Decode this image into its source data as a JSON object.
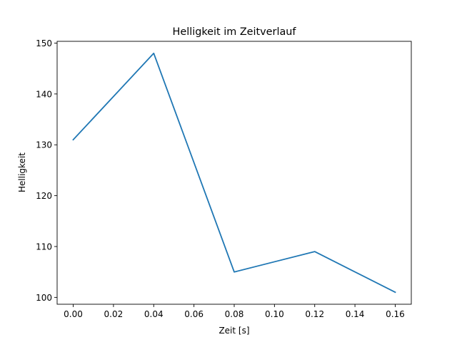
{
  "chart_data": {
    "type": "line",
    "title": "Helligkeit im Zeitverlauf",
    "xlabel": "Zeit [s]",
    "ylabel": "Helligkeit",
    "x": [
      0.0,
      0.04,
      0.08,
      0.12,
      0.16
    ],
    "series": [
      {
        "name": "Helligkeit",
        "values": [
          131,
          148,
          105,
          109,
          101
        ],
        "color": "#1f77b4"
      }
    ],
    "xlim": [
      -0.008,
      0.168
    ],
    "ylim": [
      98.65,
      150.35
    ],
    "xticks": [
      0.0,
      0.02,
      0.04,
      0.06,
      0.08,
      0.1,
      0.12,
      0.14,
      0.16
    ],
    "xtick_labels": [
      "0.00",
      "0.02",
      "0.04",
      "0.06",
      "0.08",
      "0.10",
      "0.12",
      "0.14",
      "0.16"
    ],
    "yticks": [
      100,
      110,
      120,
      130,
      140,
      150
    ],
    "ytick_labels": [
      "100",
      "110",
      "120",
      "130",
      "140",
      "150"
    ],
    "grid": false,
    "legend": "none"
  }
}
